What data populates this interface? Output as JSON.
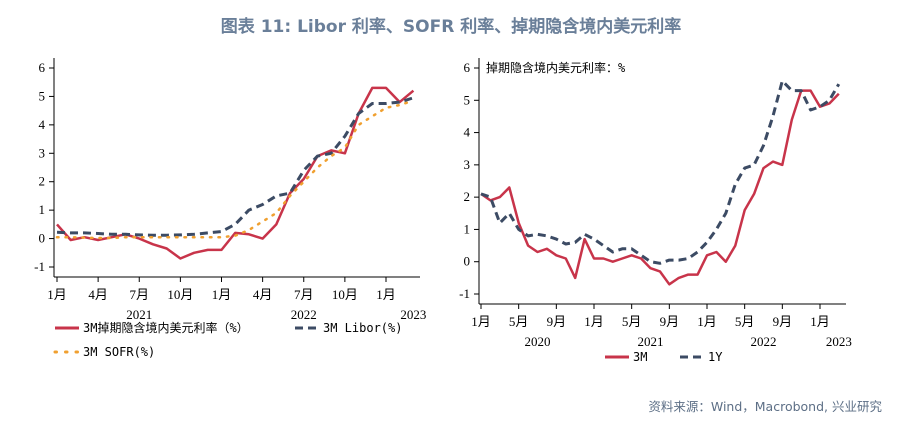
{
  "title": "图表 11: Libor 利率、SOFR 利率、掉期隐含境内美元利率",
  "source": "资料来源：Wind，Macrobond, 兴业研究",
  "colors": {
    "red": "#c8344a",
    "navy": "#3c4b64",
    "orange": "#f0a030"
  },
  "chart_data": [
    {
      "type": "line",
      "ylim": [
        -1,
        6
      ],
      "yticks": [
        "-1",
        "0",
        "1",
        "2",
        "3",
        "4",
        "5",
        "6"
      ],
      "xticks": [
        {
          "date": "2021-01",
          "label": "1月"
        },
        {
          "date": "2021-04",
          "label": "4月"
        },
        {
          "date": "2021-07",
          "label": "7月"
        },
        {
          "date": "2021-10",
          "label": "10月"
        },
        {
          "date": "2022-01",
          "label": "1月"
        },
        {
          "date": "2022-04",
          "label": "4月"
        },
        {
          "date": "2022-07",
          "label": "7月"
        },
        {
          "date": "2022-10",
          "label": "10月"
        },
        {
          "date": "2023-01",
          "label": "1月"
        }
      ],
      "years": [
        {
          "date": "2021-07",
          "label": "2021"
        },
        {
          "date": "2022-07",
          "label": "2022"
        },
        {
          "date": "2023-03",
          "label": "2023"
        }
      ],
      "x": [
        "2021-01",
        "2021-02",
        "2021-03",
        "2021-04",
        "2021-05",
        "2021-06",
        "2021-07",
        "2021-08",
        "2021-09",
        "2021-10",
        "2021-11",
        "2021-12",
        "2022-01",
        "2022-02",
        "2022-03",
        "2022-04",
        "2022-05",
        "2022-06",
        "2022-07",
        "2022-08",
        "2022-09",
        "2022-10",
        "2022-11",
        "2022-12",
        "2023-01",
        "2023-02",
        "2023-03"
      ],
      "series": [
        {
          "name": "3M掉期隐含境内美元利率（%）",
          "style": "solid",
          "color": "#c8344a",
          "values": [
            0.5,
            -0.05,
            0.05,
            -0.05,
            0.05,
            0.15,
            0.0,
            -0.2,
            -0.35,
            -0.7,
            -0.5,
            -0.4,
            -0.4,
            0.2,
            0.15,
            0.0,
            0.5,
            1.6,
            2.1,
            2.9,
            3.1,
            3.0,
            4.4,
            5.3,
            5.3,
            4.8,
            5.2
          ]
        },
        {
          "name": "3M Libor(%)",
          "style": "dash",
          "color": "#3c4b64",
          "values": [
            0.22,
            0.2,
            0.2,
            0.18,
            0.15,
            0.15,
            0.13,
            0.12,
            0.12,
            0.13,
            0.15,
            0.2,
            0.25,
            0.5,
            1.0,
            1.2,
            1.5,
            1.6,
            2.4,
            2.9,
            3.0,
            3.6,
            4.4,
            4.75,
            4.75,
            4.8,
            4.95
          ]
        },
        {
          "name": "3M SOFR(%)",
          "style": "dot",
          "color": "#f0a030",
          "values": [
            0.05,
            0.05,
            0.03,
            0.02,
            0.02,
            0.05,
            0.05,
            0.05,
            0.05,
            0.05,
            0.05,
            0.05,
            0.05,
            0.1,
            0.3,
            0.6,
            0.9,
            1.5,
            2.0,
            2.5,
            2.9,
            3.2,
            4.0,
            4.3,
            4.6,
            4.7,
            4.85
          ]
        }
      ]
    },
    {
      "type": "line",
      "annotation": "掉期隐含境内美元利率：%",
      "ylim": [
        -1,
        6
      ],
      "yticks": [
        "-1",
        "0",
        "1",
        "2",
        "3",
        "4",
        "5",
        "6"
      ],
      "xticks": [
        {
          "date": "2020-01",
          "label": "1月"
        },
        {
          "date": "2020-05",
          "label": "5月"
        },
        {
          "date": "2020-09",
          "label": "9月"
        },
        {
          "date": "2021-01",
          "label": "1月"
        },
        {
          "date": "2021-05",
          "label": "5月"
        },
        {
          "date": "2021-09",
          "label": "9月"
        },
        {
          "date": "2022-01",
          "label": "1月"
        },
        {
          "date": "2022-05",
          "label": "5月"
        },
        {
          "date": "2022-09",
          "label": "9月"
        },
        {
          "date": "2023-01",
          "label": "1月"
        }
      ],
      "years": [
        {
          "date": "2020-07",
          "label": "2020"
        },
        {
          "date": "2021-07",
          "label": "2021"
        },
        {
          "date": "2022-07",
          "label": "2022"
        },
        {
          "date": "2023-03",
          "label": "2023"
        }
      ],
      "x": [
        "2020-01",
        "2020-02",
        "2020-03",
        "2020-04",
        "2020-05",
        "2020-06",
        "2020-07",
        "2020-08",
        "2020-09",
        "2020-10",
        "2020-11",
        "2020-12",
        "2021-01",
        "2021-02",
        "2021-03",
        "2021-04",
        "2021-05",
        "2021-06",
        "2021-07",
        "2021-08",
        "2021-09",
        "2021-10",
        "2021-11",
        "2021-12",
        "2022-01",
        "2022-02",
        "2022-03",
        "2022-04",
        "2022-05",
        "2022-06",
        "2022-07",
        "2022-08",
        "2022-09",
        "2022-10",
        "2022-11",
        "2022-12",
        "2023-01",
        "2023-02",
        "2023-03"
      ],
      "series": [
        {
          "name": "3M",
          "style": "solid",
          "color": "#c8344a",
          "values": [
            2.1,
            1.9,
            2.0,
            2.3,
            1.2,
            0.5,
            0.3,
            0.4,
            0.2,
            0.1,
            -0.5,
            0.7,
            0.1,
            0.1,
            0.0,
            0.1,
            0.2,
            0.1,
            -0.2,
            -0.3,
            -0.7,
            -0.5,
            -0.4,
            -0.4,
            0.2,
            0.3,
            0.0,
            0.5,
            1.6,
            2.1,
            2.9,
            3.1,
            3.0,
            4.4,
            5.3,
            5.3,
            4.8,
            4.9,
            5.2
          ]
        },
        {
          "name": "1Y",
          "style": "dash",
          "color": "#3c4b64",
          "values": [
            2.1,
            2.0,
            1.2,
            1.5,
            1.0,
            0.8,
            0.85,
            0.8,
            0.7,
            0.55,
            0.6,
            0.85,
            0.7,
            0.5,
            0.3,
            0.4,
            0.4,
            0.2,
            0.0,
            -0.05,
            0.05,
            0.05,
            0.1,
            0.3,
            0.6,
            1.0,
            1.5,
            2.4,
            2.9,
            3.0,
            3.6,
            4.5,
            5.6,
            5.3,
            5.3,
            4.7,
            4.8,
            5.0,
            5.5
          ]
        }
      ]
    }
  ]
}
